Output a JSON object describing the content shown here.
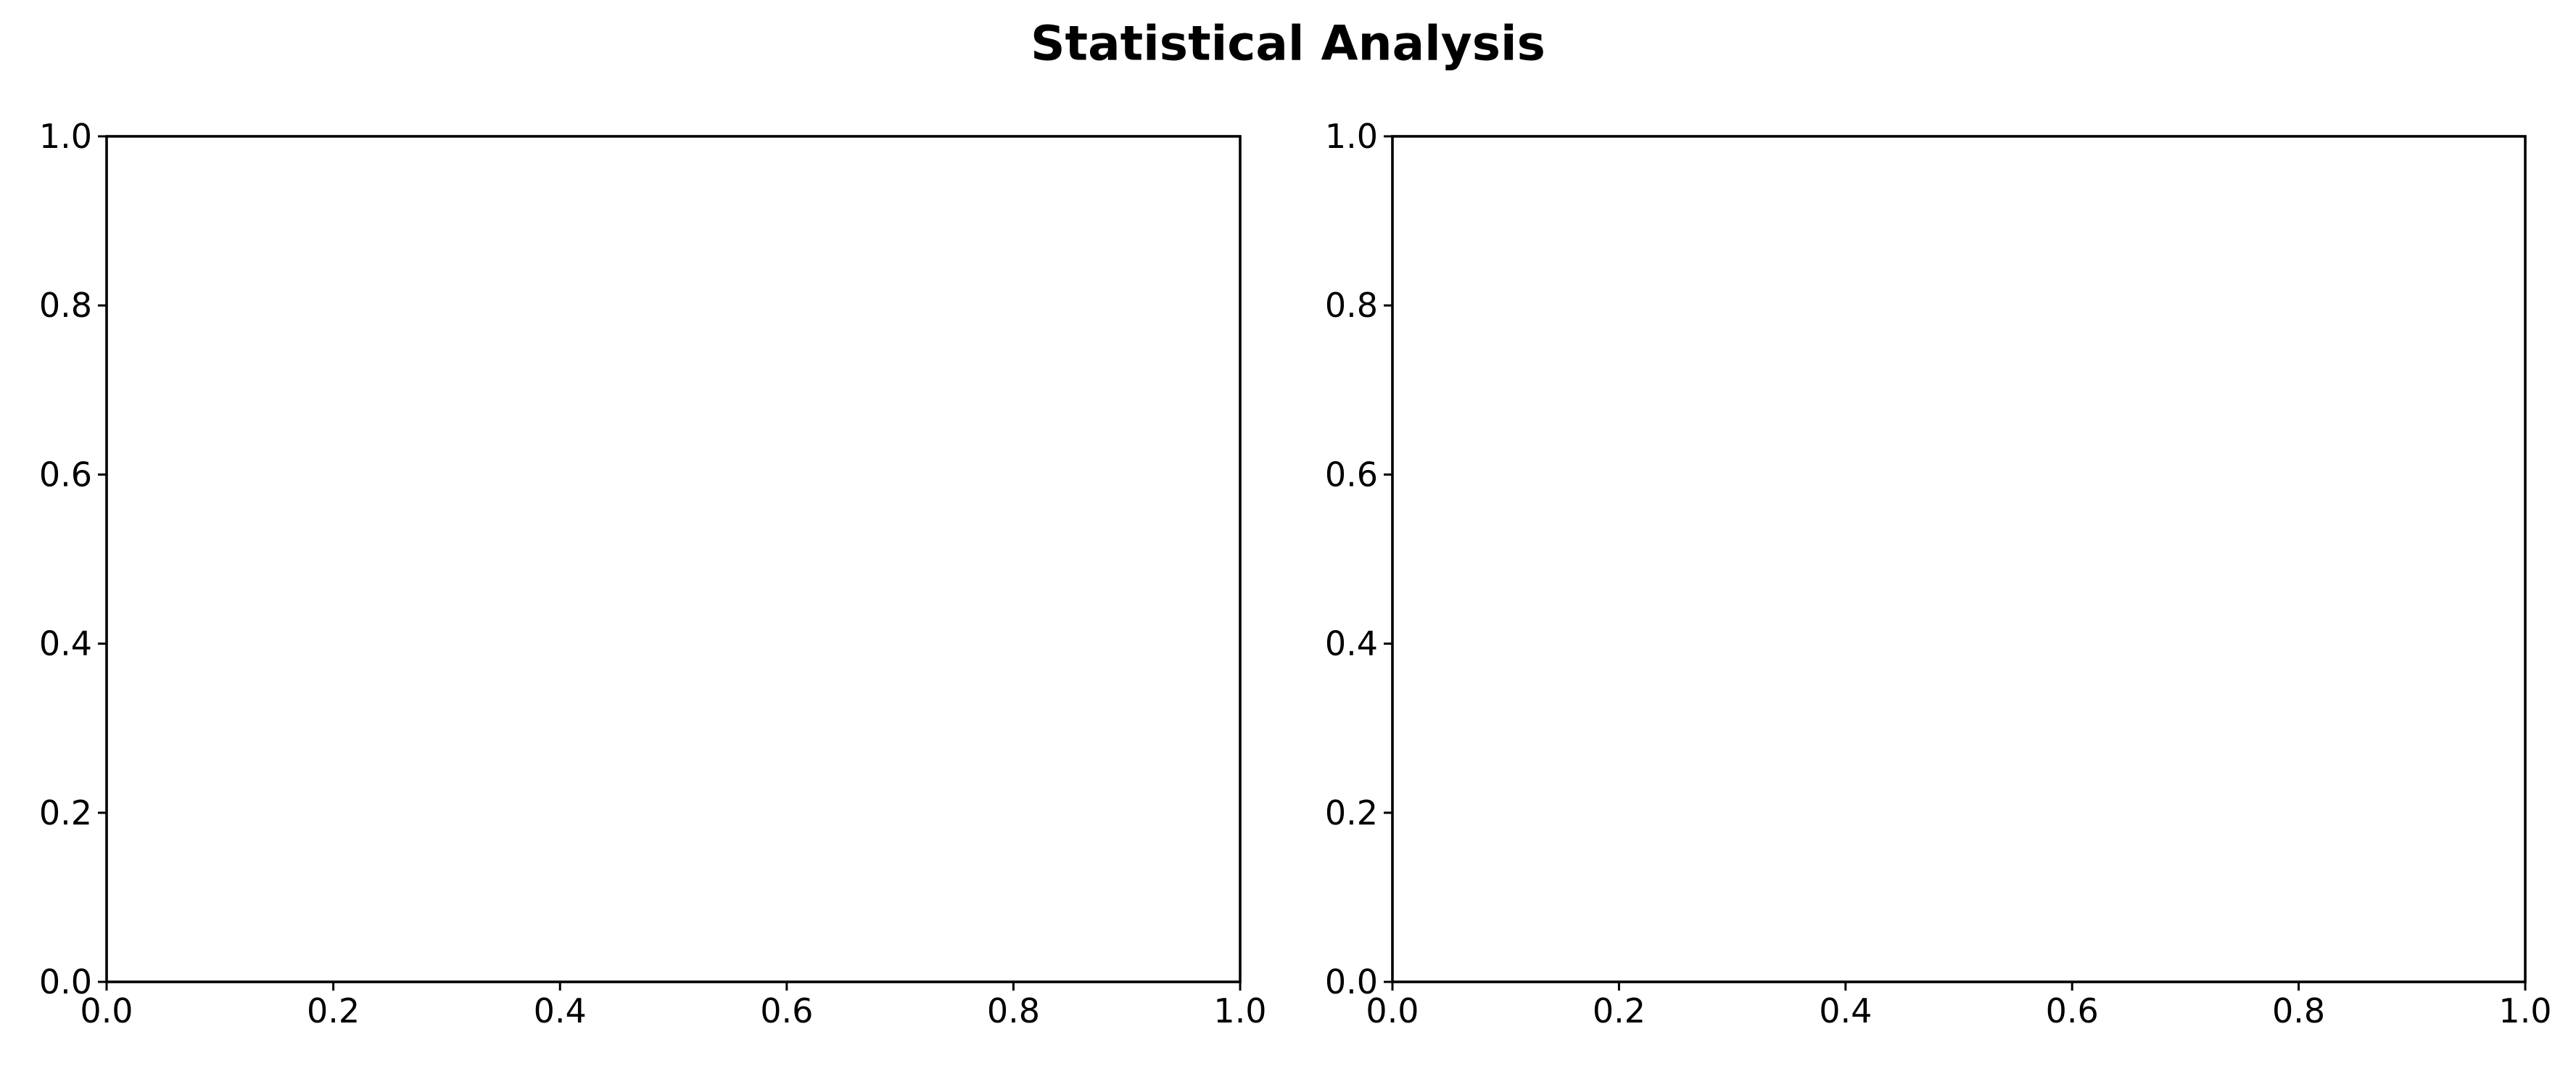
{
  "figure_title": "Statistical Analysis",
  "chart_data": [
    {
      "type": "scatter",
      "title": "",
      "xlabel": "",
      "ylabel": "",
      "xlim": [
        0.0,
        1.0
      ],
      "ylim": [
        0.0,
        1.0
      ],
      "x_ticks": [
        "0.0",
        "0.2",
        "0.4",
        "0.6",
        "0.8",
        "1.0"
      ],
      "y_ticks": [
        "0.0",
        "0.2",
        "0.4",
        "0.6",
        "0.8",
        "1.0"
      ],
      "grid": false,
      "series": []
    },
    {
      "type": "scatter",
      "title": "",
      "xlabel": "",
      "ylabel": "",
      "xlim": [
        0.0,
        1.0
      ],
      "ylim": [
        0.0,
        1.0
      ],
      "x_ticks": [
        "0.0",
        "0.2",
        "0.4",
        "0.6",
        "0.8",
        "1.0"
      ],
      "y_ticks": [
        "0.0",
        "0.2",
        "0.4",
        "0.6",
        "0.8",
        "1.0"
      ],
      "grid": false,
      "series": []
    }
  ]
}
